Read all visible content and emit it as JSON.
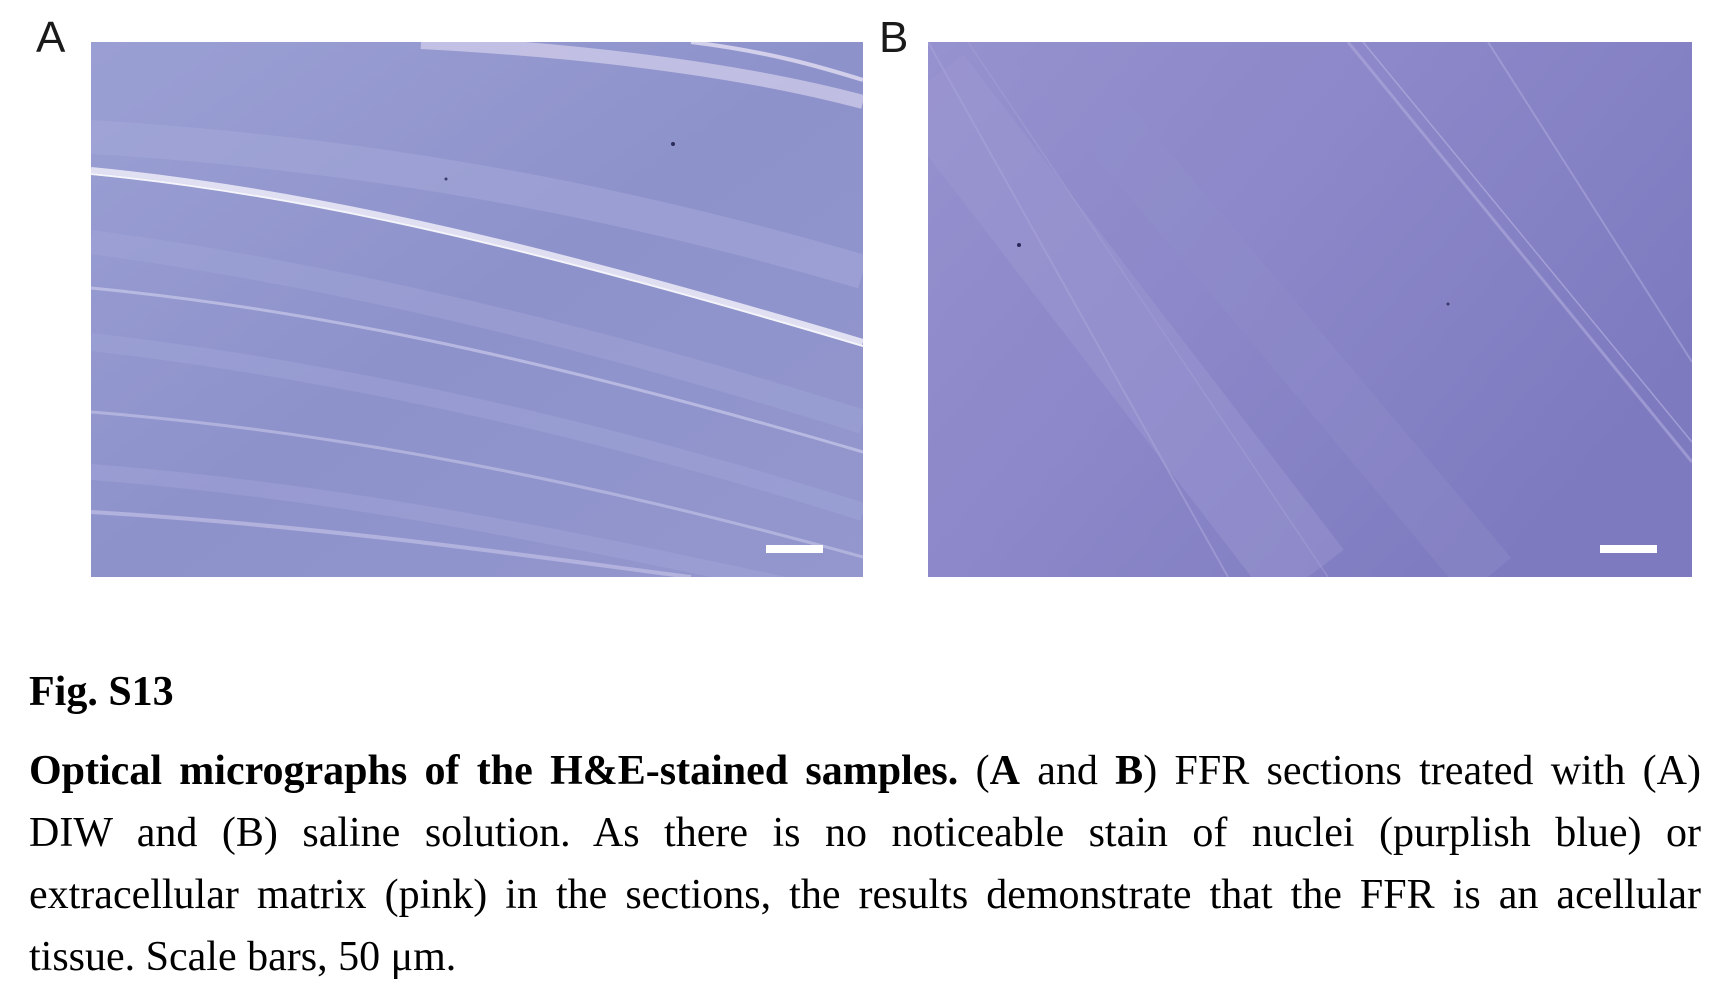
{
  "panels": {
    "a": {
      "label": "A"
    },
    "b": {
      "label": "B"
    }
  },
  "caption": {
    "fig_label": "Fig. S13",
    "title_bold": "Optical micrographs of the H&E-stained samples.",
    "seg1": " (",
    "bold_a": "A",
    "seg2": " and ",
    "bold_b": "B",
    "seg3": ") FFR sections treated with (A) DIW and (B) saline solution. As there is no noticeable stain of nuclei (purplish blue) or extracellular matrix (pink) in the sections, the results demonstrate that the FFR is an acellular tissue. Scale bars, 50 μm."
  },
  "colors": {
    "stain_a": "#8f93cc",
    "stain_b": "#8a85c8"
  }
}
